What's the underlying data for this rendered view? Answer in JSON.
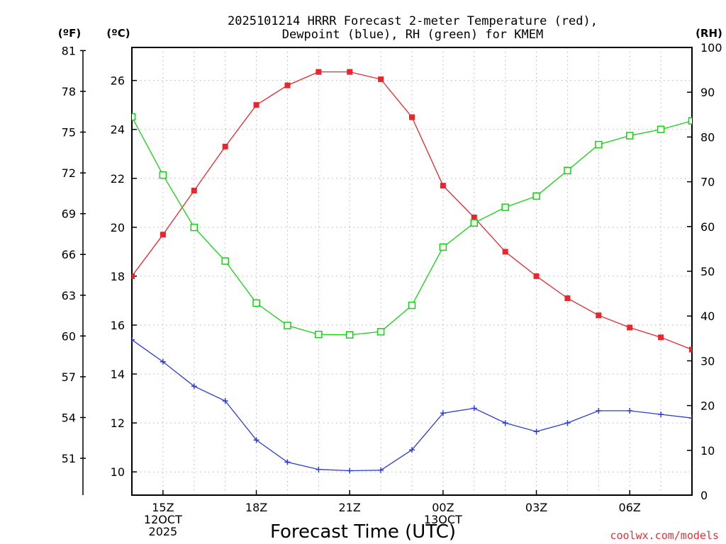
{
  "chart_data": {
    "type": "line",
    "title": [
      "2025101214 HRRR Forecast 2-meter Temperature (red),",
      "Dewpoint (blue), RH (green) for KMEM"
    ],
    "xlabel": "Forecast Time (UTC)",
    "units": {
      "fahrenheit": "(ºF)",
      "celsius": "(ºC)",
      "rh": "(RH)"
    },
    "credit": "coolwx.com/models",
    "x_hours": [
      14,
      15,
      16,
      17,
      18,
      19,
      20,
      21,
      22,
      23,
      24,
      25,
      26,
      27,
      28,
      29,
      30,
      31,
      32
    ],
    "x_ticks": [
      {
        "hour": 15,
        "lines": [
          "15Z",
          "12OCT",
          "2025"
        ]
      },
      {
        "hour": 18,
        "lines": [
          "18Z"
        ]
      },
      {
        "hour": 21,
        "lines": [
          "21Z"
        ]
      },
      {
        "hour": 24,
        "lines": [
          "00Z",
          "13OCT"
        ]
      },
      {
        "hour": 27,
        "lines": [
          "03Z"
        ]
      },
      {
        "hour": 30,
        "lines": [
          "06Z"
        ]
      }
    ],
    "xlim": [
      14,
      32
    ],
    "ylim_celsius": [
      9.05,
      27.35
    ],
    "ylim_rh": [
      0,
      100
    ],
    "yticks_celsius": [
      10,
      12,
      14,
      16,
      18,
      20,
      22,
      24,
      26
    ],
    "yticks_fahrenheit": [
      51,
      54,
      57,
      60,
      63,
      66,
      69,
      72,
      75,
      78,
      81
    ],
    "yticks_rh": [
      0,
      10,
      20,
      30,
      40,
      50,
      60,
      70,
      80,
      90,
      100
    ],
    "series": [
      {
        "name": "Temperature",
        "axis": "celsius",
        "color": "#e8262c",
        "marker": "square-filled",
        "values": [
          18.0,
          19.7,
          21.5,
          23.3,
          25.0,
          25.8,
          26.35,
          26.35,
          26.05,
          24.5,
          21.7,
          20.4,
          19.0,
          18.0,
          17.1,
          16.4,
          15.9,
          15.5,
          15.0
        ]
      },
      {
        "name": "Dewpoint",
        "axis": "celsius",
        "color": "#2a3dde",
        "marker": "plus",
        "values": [
          15.4,
          14.5,
          13.5,
          12.9,
          11.3,
          10.4,
          10.1,
          10.05,
          10.07,
          10.9,
          12.4,
          12.6,
          12.0,
          11.65,
          12.0,
          12.5,
          12.5,
          12.35,
          12.2
        ]
      },
      {
        "name": "RH",
        "axis": "rh",
        "color": "#11d411",
        "marker": "square-open",
        "values": [
          84.5,
          71.5,
          59.8,
          52.3,
          42.9,
          37.9,
          35.9,
          35.8,
          36.5,
          42.4,
          55.4,
          60.8,
          64.3,
          66.8,
          72.5,
          78.3,
          80.3,
          81.7,
          83.6
        ]
      }
    ]
  }
}
